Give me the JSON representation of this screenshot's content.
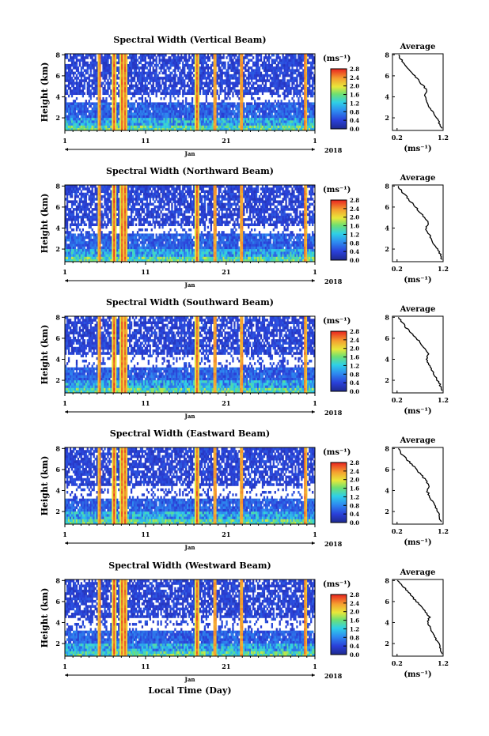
{
  "figure": {
    "year": "2018",
    "month_label": "Jan",
    "time_axis_label": "Local Time (Day)",
    "unit_label": "(ms⁻¹)"
  },
  "chart_data": [
    {
      "type": "heatmap",
      "title": "Spectral Width (Vertical Beam)",
      "ylabel": "Height (km)",
      "xlabel": "Local Time (Day)",
      "x_ticks": [
        "1",
        "11",
        "21",
        "1"
      ],
      "y_ticks": [
        "2",
        "4",
        "6",
        "8"
      ],
      "ylim": [
        0.8,
        8.1
      ],
      "xlim": [
        1,
        32
      ],
      "colorbar": {
        "label": "(ms⁻¹)",
        "ticks": [
          "0.0",
          "0.4",
          "0.8",
          "1.2",
          "1.6",
          "2.0",
          "2.4",
          "2.8"
        ],
        "range": [
          0.0,
          2.8
        ]
      },
      "high_width_events_day": [
        5.3,
        7.1,
        8.1,
        8.5,
        17.4,
        19.6,
        22.9,
        30.8
      ],
      "average_profile": {
        "title": "Average",
        "xlabel": "(ms⁻¹)",
        "x_ticks": [
          "0.2",
          "1.2"
        ],
        "xlim": [
          0.1,
          1.2
        ],
        "height_km": [
          8.0,
          7.5,
          7.0,
          6.5,
          6.0,
          5.5,
          5.0,
          4.5,
          4.0,
          3.5,
          3.0,
          2.5,
          2.0,
          1.5,
          1.0
        ],
        "width_ms": [
          0.22,
          0.3,
          0.38,
          0.48,
          0.58,
          0.68,
          0.78,
          0.85,
          0.8,
          0.85,
          0.9,
          0.98,
          1.05,
          1.12,
          1.18
        ]
      }
    },
    {
      "type": "heatmap",
      "title": "Spectral Width (Northward Beam)",
      "ylabel": "Height (km)",
      "xlabel": "Local Time (Day)",
      "x_ticks": [
        "1",
        "11",
        "21",
        "1"
      ],
      "y_ticks": [
        "2",
        "4",
        "6",
        "8"
      ],
      "ylim": [
        0.8,
        8.1
      ],
      "xlim": [
        1,
        32
      ],
      "colorbar": {
        "label": "(ms⁻¹)",
        "ticks": [
          "0.0",
          "0.4",
          "0.8",
          "1.2",
          "1.6",
          "2.0",
          "2.4",
          "2.8"
        ],
        "range": [
          0.0,
          2.8
        ]
      },
      "high_width_events_day": [
        5.3,
        7.1,
        8.1,
        8.5,
        17.4,
        19.6,
        22.9,
        30.8
      ],
      "average_profile": {
        "title": "Average",
        "xlabel": "(ms⁻¹)",
        "x_ticks": [
          "0.2",
          "1.2"
        ],
        "xlim": [
          0.1,
          1.2
        ],
        "height_km": [
          8.0,
          7.5,
          7.0,
          6.5,
          6.0,
          5.5,
          5.0,
          4.5,
          4.0,
          3.5,
          3.0,
          2.5,
          2.0,
          1.5,
          1.0
        ],
        "width_ms": [
          0.22,
          0.3,
          0.4,
          0.5,
          0.6,
          0.7,
          0.8,
          0.88,
          0.82,
          0.88,
          0.95,
          1.0,
          1.08,
          1.14,
          1.18
        ]
      }
    },
    {
      "type": "heatmap",
      "title": "Spectral Width (Southward Beam)",
      "ylabel": "Height (km)",
      "xlabel": "Local Time (Day)",
      "x_ticks": [
        "1",
        "11",
        "21",
        "1"
      ],
      "y_ticks": [
        "2",
        "4",
        "6",
        "8"
      ],
      "ylim": [
        0.8,
        8.1
      ],
      "xlim": [
        1,
        32
      ],
      "colorbar": {
        "label": "(ms⁻¹)",
        "ticks": [
          "0.0",
          "0.4",
          "0.8",
          "1.2",
          "1.6",
          "2.0",
          "2.4",
          "2.8"
        ],
        "range": [
          0.0,
          2.8
        ]
      },
      "high_width_events_day": [
        5.3,
        7.1,
        8.1,
        8.5,
        17.4,
        19.6,
        22.9,
        30.8
      ],
      "average_profile": {
        "title": "Average",
        "xlabel": "(ms⁻¹)",
        "x_ticks": [
          "0.2",
          "1.2"
        ],
        "xlim": [
          0.1,
          1.2
        ],
        "height_km": [
          8.0,
          7.5,
          7.0,
          6.5,
          6.0,
          5.5,
          5.0,
          4.5,
          4.0,
          3.5,
          3.0,
          2.5,
          2.0,
          1.5,
          1.0
        ],
        "width_ms": [
          0.22,
          0.32,
          0.4,
          0.5,
          0.62,
          0.72,
          0.8,
          0.88,
          0.84,
          0.9,
          0.96,
          1.02,
          1.08,
          1.14,
          1.18
        ]
      }
    },
    {
      "type": "heatmap",
      "title": "Spectral Width (Eastward Beam)",
      "ylabel": "Height (km)",
      "xlabel": "Local Time (Day)",
      "x_ticks": [
        "1",
        "11",
        "21",
        "1"
      ],
      "y_ticks": [
        "2",
        "4",
        "6",
        "8"
      ],
      "ylim": [
        0.8,
        8.1
      ],
      "xlim": [
        1,
        32
      ],
      "colorbar": {
        "label": "(ms⁻¹)",
        "ticks": [
          "0.0",
          "0.4",
          "0.8",
          "1.2",
          "1.6",
          "2.0",
          "2.4",
          "2.8"
        ],
        "range": [
          0.0,
          2.8
        ]
      },
      "high_width_events_day": [
        5.3,
        7.1,
        8.1,
        8.5,
        17.4,
        19.6,
        22.9,
        30.8
      ],
      "average_profile": {
        "title": "Average",
        "xlabel": "(ms⁻¹)",
        "x_ticks": [
          "0.2",
          "1.2"
        ],
        "xlim": [
          0.1,
          1.2
        ],
        "height_km": [
          8.0,
          7.5,
          7.0,
          6.5,
          6.0,
          5.5,
          5.0,
          4.5,
          4.0,
          3.5,
          3.0,
          2.5,
          2.0,
          1.5,
          1.0
        ],
        "width_ms": [
          0.22,
          0.3,
          0.4,
          0.52,
          0.62,
          0.72,
          0.82,
          0.9,
          0.85,
          0.9,
          0.96,
          1.02,
          1.08,
          1.12,
          1.16
        ]
      }
    },
    {
      "type": "heatmap",
      "title": "Spectral Width (Westward Beam)",
      "ylabel": "Height (km)",
      "xlabel": "Local Time (Day)",
      "x_ticks": [
        "1",
        "11",
        "21",
        "1"
      ],
      "y_ticks": [
        "2",
        "4",
        "6",
        "8"
      ],
      "ylim": [
        0.8,
        8.1
      ],
      "xlim": [
        1,
        32
      ],
      "colorbar": {
        "label": "(ms⁻¹)",
        "ticks": [
          "0.0",
          "0.4",
          "0.8",
          "1.2",
          "1.6",
          "2.0",
          "2.4",
          "2.8"
        ],
        "range": [
          0.0,
          2.8
        ]
      },
      "high_width_events_day": [
        5.3,
        7.1,
        8.1,
        8.5,
        17.4,
        19.6,
        22.9,
        30.8
      ],
      "average_profile": {
        "title": "Average",
        "xlabel": "(ms⁻¹)",
        "x_ticks": [
          "0.2",
          "1.2"
        ],
        "xlim": [
          0.1,
          1.2
        ],
        "height_km": [
          8.0,
          7.5,
          7.0,
          6.5,
          6.0,
          5.5,
          5.0,
          4.5,
          4.0,
          3.5,
          3.0,
          2.5,
          2.0,
          1.5,
          1.0
        ],
        "width_ms": [
          0.22,
          0.32,
          0.42,
          0.52,
          0.62,
          0.72,
          0.82,
          0.9,
          0.86,
          0.92,
          0.98,
          1.04,
          1.1,
          1.14,
          1.18
        ]
      }
    }
  ]
}
